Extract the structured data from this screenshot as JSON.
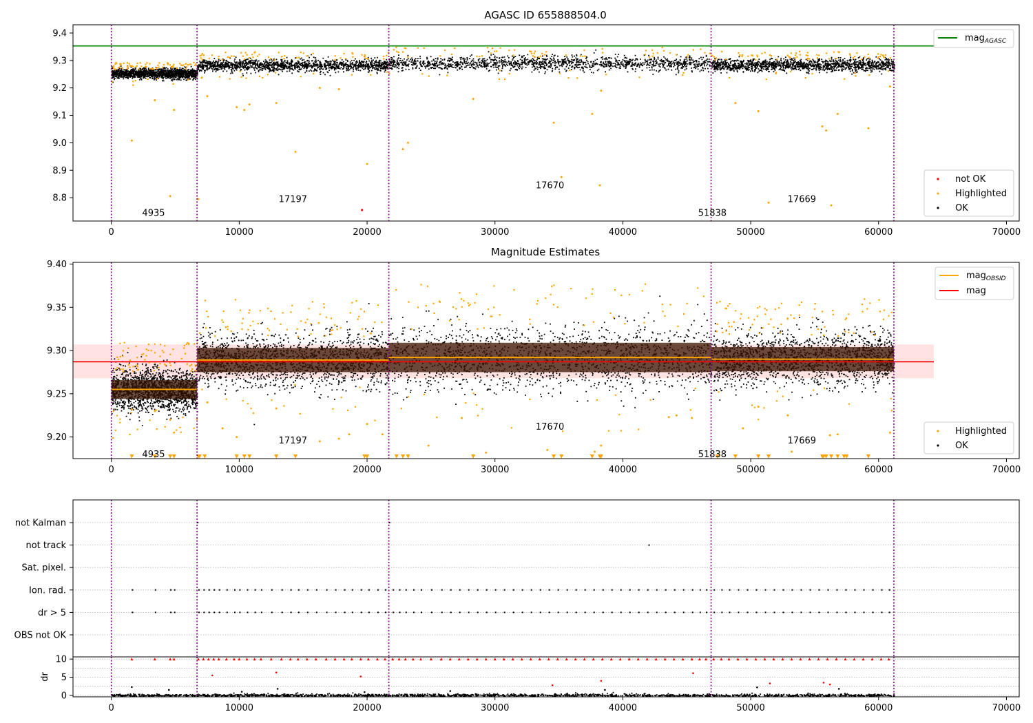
{
  "chart_data": [
    {
      "type": "scatter",
      "title": "AGASC ID 655888504.0",
      "xlim": [
        -3000,
        71000
      ],
      "ylim": [
        8.715,
        9.43
      ],
      "xticks": [
        0,
        10000,
        20000,
        30000,
        40000,
        50000,
        60000,
        70000
      ],
      "yticks": [
        8.8,
        8.9,
        9.0,
        9.1,
        9.2,
        9.3,
        9.4
      ],
      "grid": false,
      "boundaries": [
        0,
        6700,
        21700,
        46900,
        61200
      ],
      "mag_agasc": 9.353,
      "segments": [
        {
          "start": 0,
          "end": 6700,
          "center": 9.254,
          "spread": 0.018,
          "label": "4935",
          "label_x": 3300,
          "label_y": 8.745
        },
        {
          "start": 6700,
          "end": 21700,
          "center": 9.284,
          "spread": 0.022,
          "label": "17197",
          "label_x": 14200,
          "label_y": 8.795
        },
        {
          "start": 21700,
          "end": 46900,
          "center": 9.291,
          "spread": 0.026,
          "label": "17670",
          "label_x": 34300,
          "label_y": 8.845
        },
        {
          "start": 46900,
          "end": 61200,
          "center": 9.285,
          "spread": 0.022,
          "label": "51838",
          "label_x": 47000,
          "label_y": 8.745
        },
        {
          "start": 46900,
          "end": 61200,
          "center": 9.285,
          "spread": 0.022,
          "label": "17669",
          "label_x": 54000,
          "label_y": 8.795
        }
      ],
      "outliers": [
        [
          1600,
          9.008
        ],
        [
          3400,
          9.155
        ],
        [
          4600,
          8.806
        ],
        [
          4900,
          9.12
        ],
        [
          6800,
          8.795
        ],
        [
          7500,
          9.17
        ],
        [
          9800,
          9.13
        ],
        [
          10400,
          9.12
        ],
        [
          10800,
          9.14
        ],
        [
          12900,
          9.145
        ],
        [
          14400,
          8.967
        ],
        [
          16300,
          9.2
        ],
        [
          17800,
          9.195
        ],
        [
          20000,
          8.923
        ],
        [
          22800,
          8.977
        ],
        [
          23200,
          9.0
        ],
        [
          28300,
          9.16
        ],
        [
          34600,
          9.073
        ],
        [
          35200,
          8.875
        ],
        [
          37600,
          9.105
        ],
        [
          38200,
          8.845
        ],
        [
          38300,
          9.19
        ],
        [
          48800,
          9.145
        ],
        [
          50600,
          9.115
        ],
        [
          51400,
          8.782
        ],
        [
          55600,
          9.06
        ],
        [
          55900,
          9.045
        ],
        [
          56300,
          8.772
        ],
        [
          56800,
          9.105
        ],
        [
          59200,
          9.053
        ],
        [
          60900,
          9.205
        ]
      ],
      "not_ok_points": [
        [
          19600,
          8.755
        ]
      ],
      "legend_lines": [
        {
          "label_main": "mag",
          "label_sub": "AGASC",
          "color": "#008000"
        }
      ],
      "legend_points": [
        {
          "label": "not OK",
          "color": "#ff0000"
        },
        {
          "label": "Highlighted",
          "color": "#ffa500"
        },
        {
          "label": "OK",
          "color": "#000000"
        }
      ]
    },
    {
      "type": "scatter",
      "title": "Magnitude Estimates",
      "xlim": [
        -3000,
        71000
      ],
      "ylim": [
        9.175,
        9.402
      ],
      "xticks": [
        0,
        10000,
        20000,
        30000,
        40000,
        50000,
        60000,
        70000
      ],
      "yticks": [
        9.2,
        9.25,
        9.3,
        9.35,
        9.4
      ],
      "grid": false,
      "boundaries": [
        0,
        6700,
        21700,
        46900,
        61200
      ],
      "mag": 9.287,
      "mag_band": [
        9.268,
        9.307
      ],
      "segments": [
        {
          "start": 0,
          "end": 6700,
          "mag_obsid": 9.255,
          "spread": 0.011,
          "label": "4935",
          "label_x": 3300,
          "label_y": 9.18
        },
        {
          "start": 6700,
          "end": 21700,
          "mag_obsid": 9.289,
          "spread": 0.014,
          "label": "17197",
          "label_x": 14200,
          "label_y": 9.196
        },
        {
          "start": 21700,
          "end": 46900,
          "mag_obsid": 9.292,
          "spread": 0.017,
          "label": "17670",
          "label_x": 34300,
          "label_y": 9.212
        },
        {
          "start": 46900,
          "end": 61200,
          "mag_obsid": 9.29,
          "spread": 0.014,
          "label": "51838",
          "label_x": 47000,
          "label_y": 9.18
        },
        {
          "start": 46900,
          "end": 61200,
          "mag_obsid": 9.29,
          "spread": 0.014,
          "label": "17669",
          "label_x": 54000,
          "label_y": 9.196
        }
      ],
      "outliers": [
        [
          1600,
          9.232
        ],
        [
          3400,
          9.23
        ],
        [
          4600,
          9.22
        ],
        [
          4900,
          9.205
        ],
        [
          7500,
          9.24
        ],
        [
          8700,
          9.21
        ],
        [
          9800,
          9.2
        ],
        [
          12900,
          9.233
        ],
        [
          16300,
          9.195
        ],
        [
          17800,
          9.198
        ],
        [
          18600,
          9.203
        ],
        [
          20000,
          9.215
        ],
        [
          21200,
          9.203
        ],
        [
          24800,
          9.19
        ],
        [
          27400,
          9.222
        ],
        [
          29300,
          9.182
        ],
        [
          34100,
          9.185
        ],
        [
          37800,
          9.183
        ],
        [
          38300,
          9.19
        ],
        [
          43600,
          9.223
        ],
        [
          44200,
          9.225
        ],
        [
          45400,
          9.222
        ],
        [
          49400,
          9.21
        ],
        [
          50600,
          9.235
        ],
        [
          52900,
          9.225
        ],
        [
          53200,
          9.183
        ],
        [
          56200,
          9.202
        ],
        [
          56800,
          9.203
        ],
        [
          60900,
          9.205
        ]
      ],
      "low_markers": [
        1600,
        3400,
        4600,
        4900,
        6800,
        6900,
        7300,
        9800,
        10400,
        10800,
        12900,
        14400,
        19800,
        20000,
        22300,
        22800,
        23200,
        28300,
        34600,
        35200,
        37600,
        38200,
        38300,
        47400,
        48800,
        50600,
        51400,
        55600,
        55700,
        55900,
        56300,
        56800,
        57300,
        57500,
        59200
      ],
      "legend_lines": [
        {
          "label_main": "mag",
          "label_sub": "OBSID",
          "color": "#ffa500"
        },
        {
          "label_main": "mag",
          "label_sub": "",
          "color": "#ff0000"
        }
      ],
      "legend_points": [
        {
          "label": "Highlighted",
          "color": "#ffa500"
        },
        {
          "label": "OK",
          "color": "#000000"
        }
      ]
    },
    {
      "type": "scatter",
      "title": "",
      "xlim": [
        -3000,
        71000
      ],
      "categories": [
        "not Kalman",
        "not track",
        "Sat. pixel.",
        "Ion. rad.",
        "dr > 5",
        "OBS not OK"
      ],
      "flag_x": [
        [
          6700,
          21700
        ],
        [
          42000
        ],
        [],
        [
          1600,
          3400,
          4600,
          4900,
          6800,
          7200,
          7600,
          8000,
          8400,
          9000,
          9600,
          10000,
          10600,
          11200,
          11700,
          12500,
          13300,
          14000,
          14600,
          15300,
          16000,
          16800,
          17500,
          18200,
          18800,
          19500,
          20100,
          20800,
          21400,
          22000,
          22500,
          23000,
          23600,
          24200,
          25000,
          25800,
          26500,
          27200,
          27900,
          28600,
          29300,
          30000,
          30700,
          31400,
          32100,
          32800,
          33500,
          34200,
          34900,
          35600,
          36300,
          37000,
          37700,
          38400,
          39100,
          39800,
          40500,
          41200,
          41900,
          42600,
          43300,
          44000,
          44700,
          45400,
          46000,
          46500,
          47100,
          47700,
          48300,
          49000,
          49700,
          50400,
          51100,
          51800,
          52500,
          53200,
          53900,
          54600,
          55300,
          56000,
          56700,
          57400,
          58100,
          58800,
          59500,
          60200,
          60800
        ],
        [
          1600,
          3400,
          4600,
          4900,
          6800,
          7200,
          7600,
          8000,
          8400,
          9000,
          9600,
          10000,
          10600,
          11200,
          11700,
          12500,
          13300,
          14000,
          14600,
          15300,
          16000,
          16800,
          17500,
          18200,
          18800,
          19500,
          20100,
          20800,
          21400,
          22000,
          22500,
          23000,
          23600,
          24200,
          25000,
          25800,
          26500,
          27200,
          27900,
          28600,
          29300,
          30000,
          30700,
          31400,
          32100,
          32800,
          33500,
          34200,
          34900,
          35600,
          36300,
          37000,
          37700,
          38400,
          39100,
          39800,
          40500,
          41200,
          41900,
          42600,
          43300,
          44000,
          44700,
          45400,
          46000,
          46500,
          47100,
          47700,
          48300,
          49000,
          49700,
          50400,
          51100,
          51800,
          52500,
          53200,
          53900,
          54600,
          55300,
          56000,
          56700,
          57400,
          58100,
          58800,
          59500,
          60200,
          60800
        ],
        []
      ],
      "boundaries": [
        0,
        6700,
        21700,
        46900,
        61200
      ],
      "grid": true
    },
    {
      "type": "scatter",
      "title": "",
      "ylabel": "dr",
      "xlim": [
        -3000,
        71000
      ],
      "ylim": [
        -0.4,
        10.6
      ],
      "xticks": [
        0,
        10000,
        20000,
        30000,
        40000,
        50000,
        60000,
        70000
      ],
      "yticks": [
        0,
        5,
        10
      ],
      "grid": true,
      "boundaries": [
        0,
        6700,
        21700,
        46900,
        61200
      ],
      "clip_x": [
        1600,
        3400,
        4600,
        4900,
        6800,
        7200,
        7600,
        8000,
        8400,
        9000,
        9600,
        10000,
        10600,
        11200,
        11700,
        12500,
        13300,
        14000,
        14600,
        15300,
        16000,
        16800,
        17500,
        18200,
        18800,
        19500,
        20100,
        20800,
        21400,
        22000,
        22500,
        23000,
        23600,
        24200,
        25000,
        25800,
        26500,
        27200,
        27900,
        28600,
        29300,
        30000,
        30700,
        31400,
        32100,
        32800,
        33500,
        34200,
        34900,
        35600,
        36300,
        37000,
        37700,
        38400,
        39100,
        39800,
        40500,
        41200,
        41900,
        42600,
        43300,
        44000,
        44700,
        45400,
        46000,
        46500,
        47100,
        47700,
        48300,
        49000,
        49700,
        50400,
        51100,
        51800,
        52500,
        53200,
        53900,
        54600,
        55300,
        56000,
        56700,
        57400,
        58100,
        58800,
        59500,
        60200,
        60800
      ],
      "mid_red": [
        [
          7900,
          5.5
        ],
        [
          12900,
          6.3
        ],
        [
          19500,
          5.2
        ],
        [
          34500,
          2.8
        ],
        [
          38300,
          4.0
        ],
        [
          45500,
          6.1
        ],
        [
          51500,
          3.3
        ],
        [
          55700,
          3.5
        ],
        [
          56200,
          3.0
        ]
      ],
      "mid_black": [
        [
          1600,
          2.3
        ],
        [
          4500,
          1.5
        ],
        [
          10200,
          1.0
        ],
        [
          13000,
          1.8
        ],
        [
          19800,
          0.9
        ],
        [
          26500,
          1.2
        ],
        [
          38600,
          1.5
        ],
        [
          50500,
          2.2
        ],
        [
          56900,
          1.8
        ]
      ]
    }
  ]
}
